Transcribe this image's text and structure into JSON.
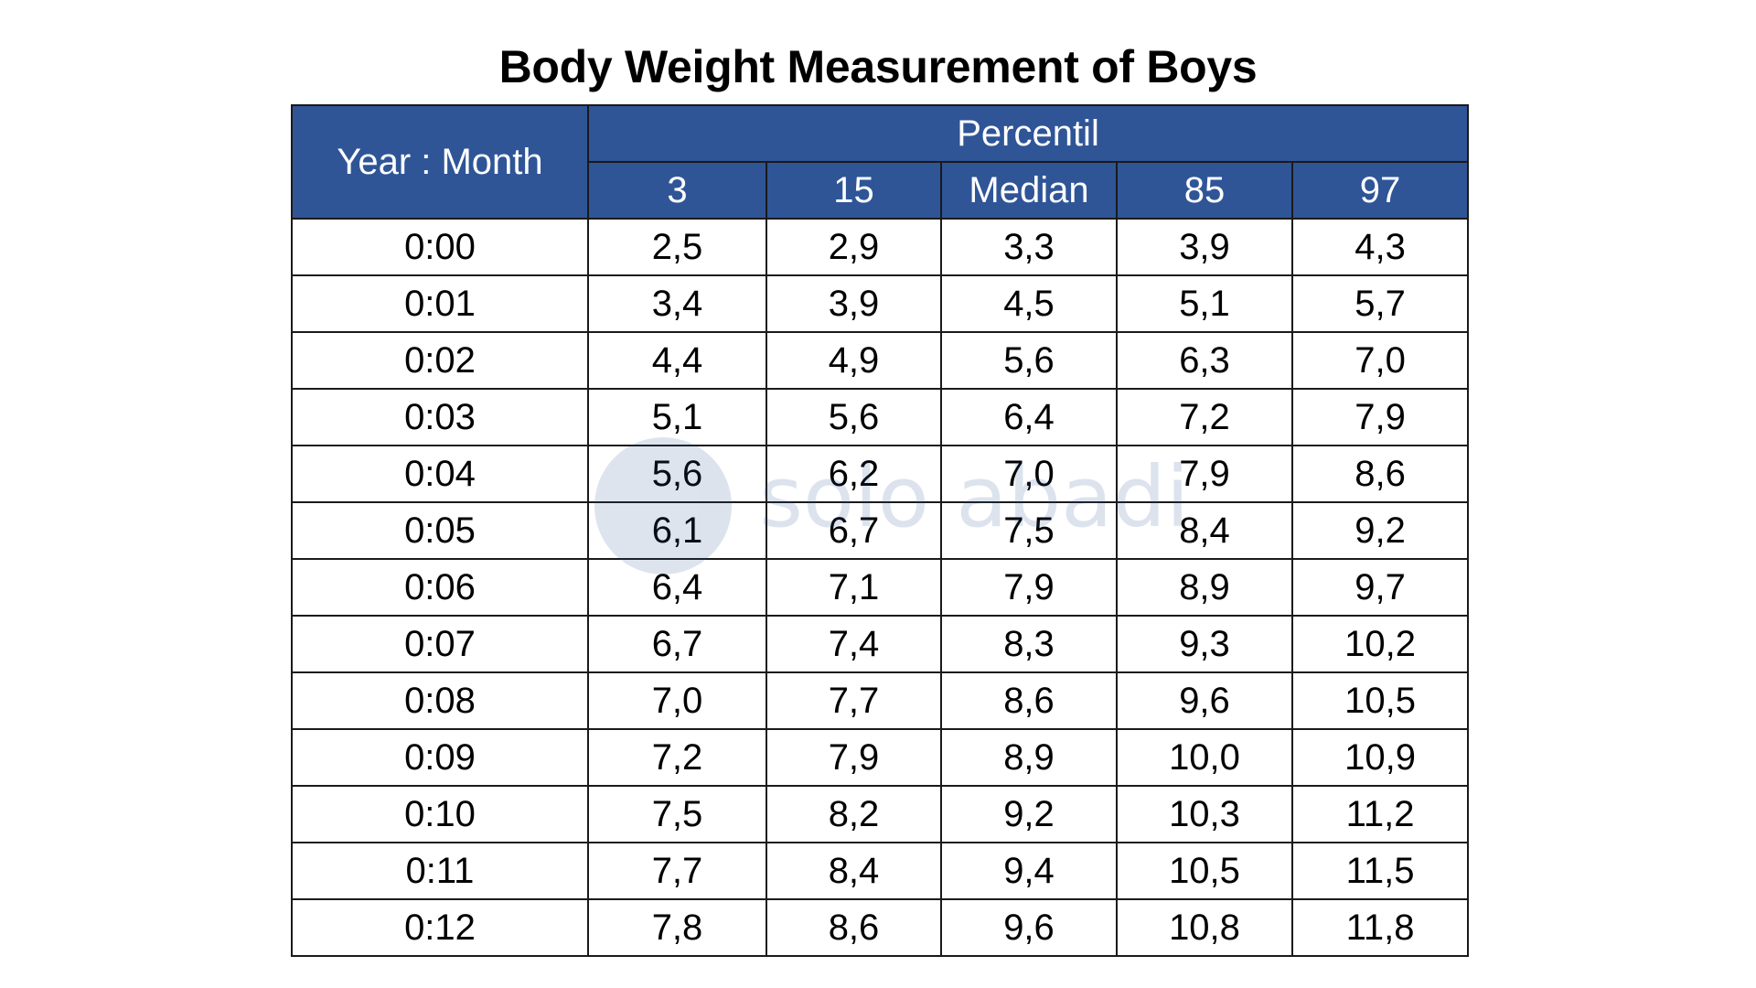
{
  "title": "Body Weight Measurement of Boys",
  "watermark_text": "solo abadi",
  "colors": {
    "header_bg": "#2f5597",
    "header_text": "#ffffff",
    "border": "#1a1a1a"
  },
  "chart_data": {
    "type": "table",
    "title": "Body Weight Measurement of Boys",
    "row_header": "Year : Month",
    "group_header": "Percentil",
    "columns": [
      "3",
      "15",
      "Median",
      "85",
      "97"
    ],
    "rows": [
      {
        "label": "0:00",
        "values": [
          "2,5",
          "2,9",
          "3,3",
          "3,9",
          "4,3"
        ]
      },
      {
        "label": "0:01",
        "values": [
          "3,4",
          "3,9",
          "4,5",
          "5,1",
          "5,7"
        ]
      },
      {
        "label": "0:02",
        "values": [
          "4,4",
          "4,9",
          "5,6",
          "6,3",
          "7,0"
        ]
      },
      {
        "label": "0:03",
        "values": [
          "5,1",
          "5,6",
          "6,4",
          "7,2",
          "7,9"
        ]
      },
      {
        "label": "0:04",
        "values": [
          "5,6",
          "6,2",
          "7,0",
          "7,9",
          "8,6"
        ]
      },
      {
        "label": "0:05",
        "values": [
          "6,1",
          "6,7",
          "7,5",
          "8,4",
          "9,2"
        ]
      },
      {
        "label": "0:06",
        "values": [
          "6,4",
          "7,1",
          "7,9",
          "8,9",
          "9,7"
        ]
      },
      {
        "label": "0:07",
        "values": [
          "6,7",
          "7,4",
          "8,3",
          "9,3",
          "10,2"
        ]
      },
      {
        "label": "0:08",
        "values": [
          "7,0",
          "7,7",
          "8,6",
          "9,6",
          "10,5"
        ]
      },
      {
        "label": "0:09",
        "values": [
          "7,2",
          "7,9",
          "8,9",
          "10,0",
          "10,9"
        ]
      },
      {
        "label": "0:10",
        "values": [
          "7,5",
          "8,2",
          "9,2",
          "10,3",
          "11,2"
        ]
      },
      {
        "label": "0:11",
        "values": [
          "7,7",
          "8,4",
          "9,4",
          "10,5",
          "11,5"
        ]
      },
      {
        "label": "0:12",
        "values": [
          "7,8",
          "8,6",
          "9,6",
          "10,8",
          "11,8"
        ]
      }
    ]
  }
}
